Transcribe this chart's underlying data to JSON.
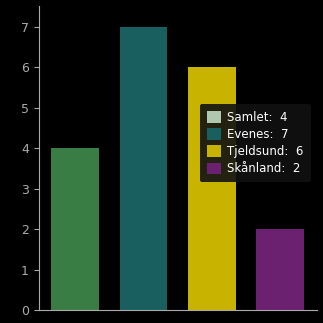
{
  "categories": [
    "Samlet",
    "Evenes",
    "Tjeldsund",
    "Skånland"
  ],
  "values": [
    4,
    7,
    6,
    2
  ],
  "bar_colors": [
    "#3a7d44",
    "#1a5f5f",
    "#c8b400",
    "#6b2070"
  ],
  "legend_labels": [
    "Samlet:  4",
    "Evenes:  7",
    "Tjeldsund:  6",
    "Skånland:  2"
  ],
  "legend_colors": [
    "#b0c8b0",
    "#1a5f5f",
    "#c8b400",
    "#6b2070"
  ],
  "background_color": "#000000",
  "text_color": "#aaaaaa",
  "ylim": [
    0,
    7.5
  ],
  "yticks": [
    0,
    1,
    2,
    3,
    4,
    5,
    6,
    7
  ],
  "bar_width": 0.7,
  "figsize": [
    3.23,
    3.23
  ],
  "dpi": 100
}
